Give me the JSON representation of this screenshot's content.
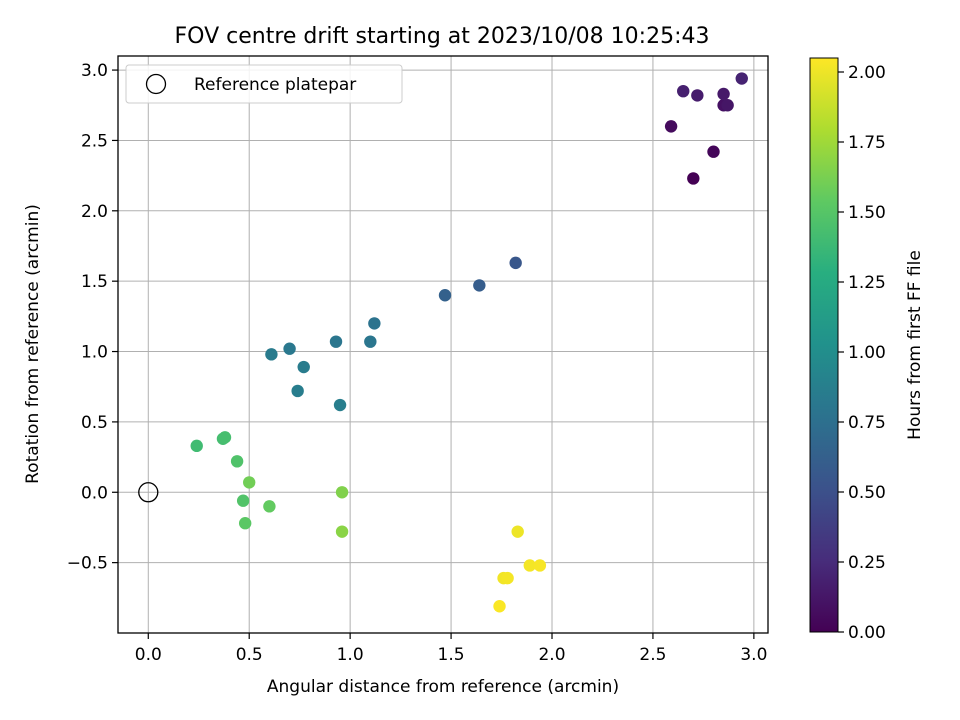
{
  "chart_data": {
    "type": "scatter",
    "title": "FOV centre drift starting at 2023/10/08 10:25:43",
    "xlabel": "Angular distance from reference (arcmin)",
    "ylabel": "Rotation from reference (arcmin)",
    "xlim": [
      -0.15,
      3.07
    ],
    "ylim": [
      -1.0,
      3.1
    ],
    "xticks": [
      0.0,
      0.5,
      1.0,
      1.5,
      2.0,
      2.5,
      3.0
    ],
    "xtick_labels": [
      "0.0",
      "0.5",
      "1.0",
      "1.5",
      "2.0",
      "2.5",
      "3.0"
    ],
    "yticks": [
      -0.5,
      0.0,
      0.5,
      1.0,
      1.5,
      2.0,
      2.5,
      3.0
    ],
    "ytick_labels": [
      "−0.5",
      "0.0",
      "0.5",
      "1.0",
      "1.5",
      "2.0",
      "2.5",
      "3.0"
    ],
    "grid": true,
    "legend": {
      "position": "top-left",
      "entries": [
        "Reference platepar"
      ]
    },
    "reference_point": {
      "name": "Reference platepar",
      "x": 0.0,
      "y": 0.0
    },
    "colorbar": {
      "label": "Hours from first FF file",
      "colormap": "viridis",
      "range": [
        0.0,
        2.05
      ],
      "ticks": [
        0.0,
        0.25,
        0.5,
        0.75,
        1.0,
        1.25,
        1.5,
        1.75,
        2.0
      ],
      "tick_labels": [
        "0.00",
        "0.25",
        "0.50",
        "0.75",
        "1.00",
        "1.25",
        "1.50",
        "1.75",
        "2.00"
      ]
    },
    "points": [
      {
        "x": 2.7,
        "y": 2.23,
        "c": 0.0
      },
      {
        "x": 2.8,
        "y": 2.42,
        "c": 0.03
      },
      {
        "x": 2.59,
        "y": 2.6,
        "c": 0.06
      },
      {
        "x": 2.85,
        "y": 2.75,
        "c": 0.09
      },
      {
        "x": 2.87,
        "y": 2.75,
        "c": 0.12
      },
      {
        "x": 2.85,
        "y": 2.83,
        "c": 0.14
      },
      {
        "x": 2.72,
        "y": 2.82,
        "c": 0.16
      },
      {
        "x": 2.65,
        "y": 2.85,
        "c": 0.18
      },
      {
        "x": 2.94,
        "y": 2.94,
        "c": 0.2
      },
      {
        "x": 1.82,
        "y": 1.63,
        "c": 0.55
      },
      {
        "x": 1.64,
        "y": 1.47,
        "c": 0.6
      },
      {
        "x": 1.47,
        "y": 1.4,
        "c": 0.63
      },
      {
        "x": 1.12,
        "y": 1.2,
        "c": 0.78
      },
      {
        "x": 1.1,
        "y": 1.07,
        "c": 0.8
      },
      {
        "x": 0.93,
        "y": 1.07,
        "c": 0.8
      },
      {
        "x": 0.7,
        "y": 1.02,
        "c": 0.82
      },
      {
        "x": 0.61,
        "y": 0.98,
        "c": 0.84
      },
      {
        "x": 0.77,
        "y": 0.89,
        "c": 0.85
      },
      {
        "x": 0.74,
        "y": 0.72,
        "c": 0.86
      },
      {
        "x": 0.95,
        "y": 0.62,
        "c": 0.87
      },
      {
        "x": 0.24,
        "y": 0.33,
        "c": 1.4
      },
      {
        "x": 0.37,
        "y": 0.38,
        "c": 1.42
      },
      {
        "x": 0.38,
        "y": 0.39,
        "c": 1.43
      },
      {
        "x": 0.44,
        "y": 0.22,
        "c": 1.47
      },
      {
        "x": 0.47,
        "y": -0.06,
        "c": 1.48
      },
      {
        "x": 0.48,
        "y": -0.22,
        "c": 1.52
      },
      {
        "x": 0.6,
        "y": -0.1,
        "c": 1.55
      },
      {
        "x": 0.5,
        "y": 0.07,
        "c": 1.6
      },
      {
        "x": 0.96,
        "y": 0.0,
        "c": 1.65
      },
      {
        "x": 0.96,
        "y": -0.28,
        "c": 1.68
      },
      {
        "x": 1.83,
        "y": -0.28,
        "c": 2.0
      },
      {
        "x": 1.76,
        "y": -0.61,
        "c": 2.01
      },
      {
        "x": 1.78,
        "y": -0.61,
        "c": 2.02
      },
      {
        "x": 1.89,
        "y": -0.52,
        "c": 2.02
      },
      {
        "x": 1.94,
        "y": -0.52,
        "c": 2.03
      },
      {
        "x": 1.74,
        "y": -0.81,
        "c": 2.04
      }
    ]
  }
}
